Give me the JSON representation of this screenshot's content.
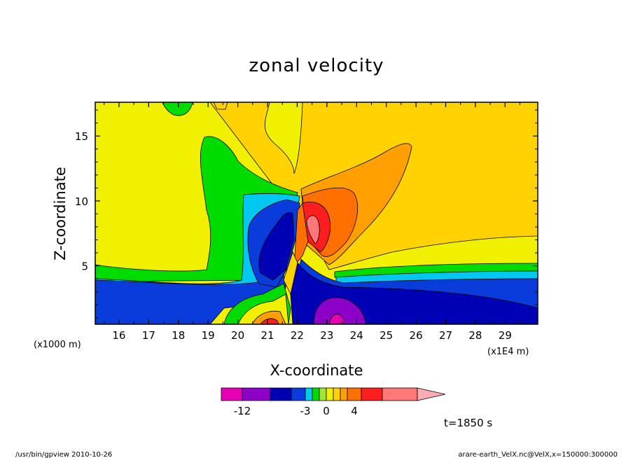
{
  "chart_data": {
    "type": "heatmap",
    "title": "zonal velocity",
    "xlabel": "X-coordinate",
    "ylabel": "Z-coordinate",
    "x_unit": "(x1E4 m)",
    "y_unit": "(x1000 m)",
    "xlim": [
      15.2,
      30.1
    ],
    "ylim": [
      0.5,
      17.6
    ],
    "xticks": [
      "16",
      "17",
      "18",
      "19",
      "20",
      "21",
      "22",
      "23",
      "24",
      "25",
      "26",
      "27",
      "28",
      "29"
    ],
    "yticks": [
      "5",
      "10",
      "15"
    ],
    "grid": false,
    "colorbar": {
      "colors": [
        "#e600b4",
        "#8c00c8",
        "#0000b4",
        "#0a3cdc",
        "#00c8f0",
        "#00dc00",
        "#a0e632",
        "#f0f000",
        "#ffd200",
        "#ffa000",
        "#ff7000",
        "#ff1e1e",
        "#ff7878",
        "#ffaab4"
      ],
      "labels": [
        "-12",
        "-3",
        "0",
        "4"
      ],
      "extends": "right"
    },
    "time_label": "t=1850 s",
    "footer_left": "/usr/bin/gpview   2010-10-26",
    "footer_right": "arare-earth_VelX.nc@VelX,x=150000:300000"
  }
}
